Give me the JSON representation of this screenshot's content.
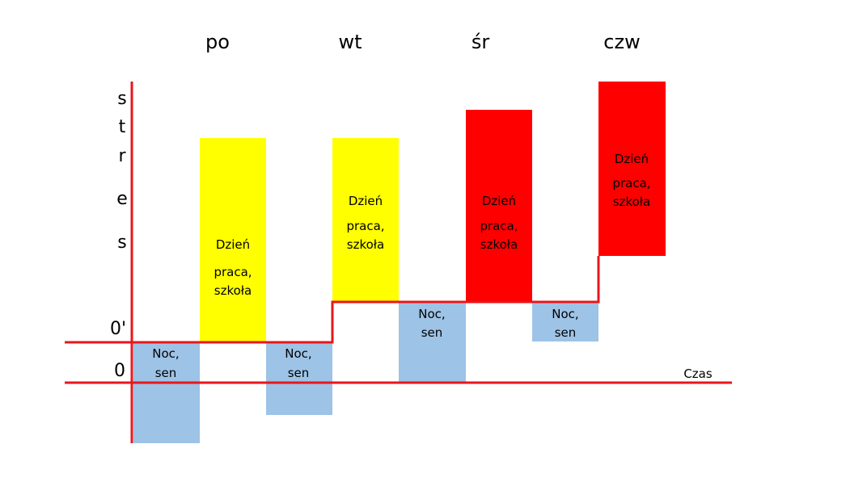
{
  "days": [
    "po",
    "wt",
    "śr",
    "czw"
  ],
  "y_axis_letters": [
    "s",
    "t",
    "r",
    "e",
    "s"
  ],
  "y_ticks": {
    "baseline": "0",
    "shifted_baseline": "0'"
  },
  "x_axis_label": "Czas",
  "day_block": {
    "line1": "Dzień",
    "line2": "praca,",
    "line3": "szkoła"
  },
  "night_block": {
    "line1": "Noc,",
    "line2": "sen"
  },
  "colors": {
    "axis": "#e8161b",
    "night": "#9dc3e6",
    "day_low": "#ffff00",
    "day_high": "#ff0000",
    "text": "#000000"
  },
  "blocks": [
    {
      "day": "po",
      "kind": "night",
      "color": "night",
      "shows_label": true
    },
    {
      "day": "po",
      "kind": "day",
      "color": "day_low",
      "shows_label": true
    },
    {
      "day": "wt",
      "kind": "night",
      "color": "night",
      "shows_label": true
    },
    {
      "day": "wt",
      "kind": "day",
      "color": "day_low",
      "shows_label": true
    },
    {
      "day": "śr",
      "kind": "night",
      "color": "night",
      "shows_label": true
    },
    {
      "day": "śr",
      "kind": "day",
      "color": "day_high",
      "shows_label": true
    },
    {
      "day": "czw",
      "kind": "night",
      "color": "night",
      "shows_label": true
    },
    {
      "day": "czw",
      "kind": "day",
      "color": "day_high",
      "shows_label": true
    }
  ]
}
